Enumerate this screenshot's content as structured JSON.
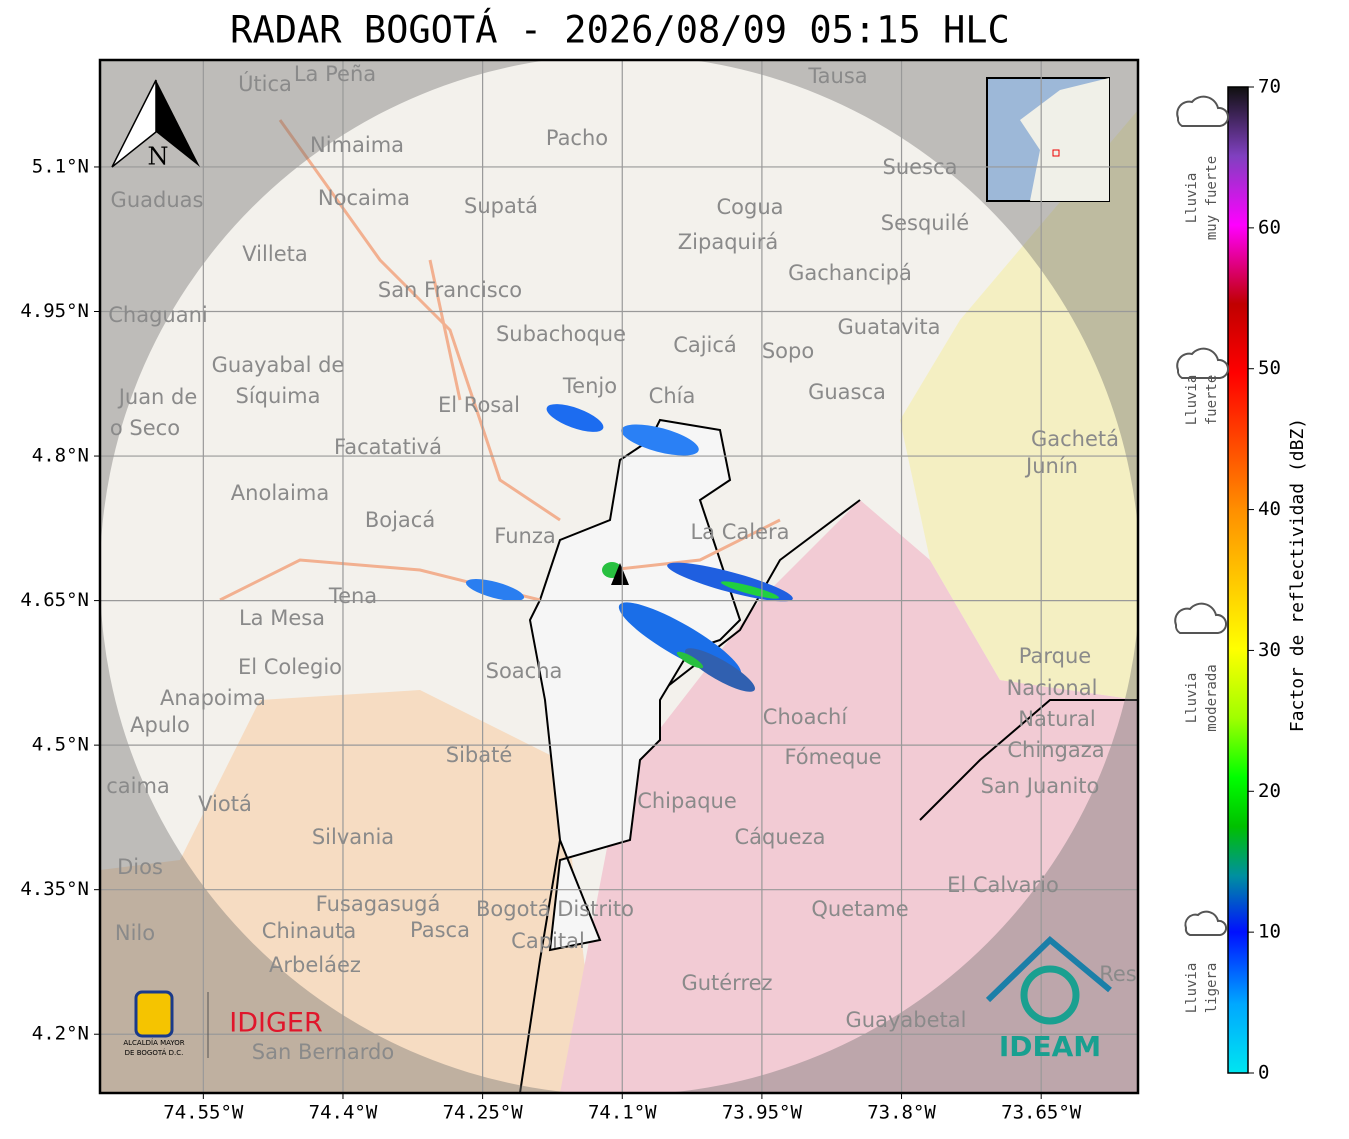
{
  "title": "RADAR BOGOTÁ - 2026/08/09 05:15 HLC",
  "map": {
    "lonlim": [
      -74.661,
      -73.546
    ],
    "latlim": [
      4.139,
      5.211
    ],
    "lon_ticks": [
      {
        "value": -74.55,
        "label": "74.55°W"
      },
      {
        "value": -74.4,
        "label": "74.4°W"
      },
      {
        "value": -74.25,
        "label": "74.25°W"
      },
      {
        "value": -74.1,
        "label": "74.1°W"
      },
      {
        "value": -73.95,
        "label": "73.95°W"
      },
      {
        "value": -73.8,
        "label": "73.8°W"
      },
      {
        "value": -73.65,
        "label": "73.65°W"
      }
    ],
    "lat_ticks": [
      {
        "value": 5.1,
        "label": "5.1°N"
      },
      {
        "value": 4.95,
        "label": "4.95°N"
      },
      {
        "value": 4.8,
        "label": "4.8°N"
      },
      {
        "value": 4.65,
        "label": "4.65°N"
      },
      {
        "value": 4.5,
        "label": "4.5°N"
      },
      {
        "value": 4.35,
        "label": "4.35°N"
      },
      {
        "value": 4.2,
        "label": "4.2°N"
      }
    ],
    "north": "N",
    "places": [
      "Útica",
      "La Peña",
      "Tausa",
      "Pacho",
      "Nimaima",
      "Guaduas",
      "Nocaima",
      "Supatá",
      "Cogua",
      "Suesca",
      "Sesquilé",
      "Villeta",
      "Zipaquirá",
      "Gachancipá",
      "San Francisco",
      "Chaguani",
      "Guatavita",
      "Subachoque",
      "Cajicá",
      "Sopo",
      "Guayabal de",
      "Síquima",
      "Tenjo",
      "Chía",
      "Guasca",
      "Juan de",
      "o Seco",
      "El Rosal",
      "Facatativá",
      "Gachetá",
      "Junín",
      "Anolaima",
      "Bojacá",
      "Funza",
      "La Calera",
      "Tena",
      "La Mesa",
      "Soacha",
      "El Colegio",
      "Parque",
      "Nacional",
      "Natural",
      "Chingaza",
      "Anapoima",
      "Apulo",
      "Choachí",
      "Sibaté",
      "Fómeque",
      "San Juanito",
      "caima",
      "Viotá",
      "Chipaque",
      "Silvania",
      "Cáqueza",
      "Dios",
      "El Calvario",
      "Fusagasugá",
      "Bogotá Distrito",
      "Quetame",
      "Nilo",
      "Chinauta",
      "Pasca",
      "Capital",
      "Arbeláez",
      "Gutérrez",
      "Res",
      "Guayabetal",
      "San Bernardo"
    ]
  },
  "colorbar": {
    "label": "Factor de reflectividad (dBZ)",
    "range": [
      0,
      70
    ],
    "ticks": [
      0,
      10,
      20,
      30,
      40,
      50,
      60,
      70
    ]
  },
  "rain_levels": [
    [
      "Lluvia",
      "muy fuerte"
    ],
    [
      "Lluvia",
      "fuerte"
    ],
    [
      "Lluvia",
      "moderada"
    ],
    [
      "Lluvia",
      "ligera"
    ]
  ],
  "logos": {
    "alcaldia": [
      "ALCALDÍA MAYOR",
      "DE BOGOTÁ D.C."
    ],
    "idiger": "IDIGER",
    "ideam": "IDEAM"
  }
}
